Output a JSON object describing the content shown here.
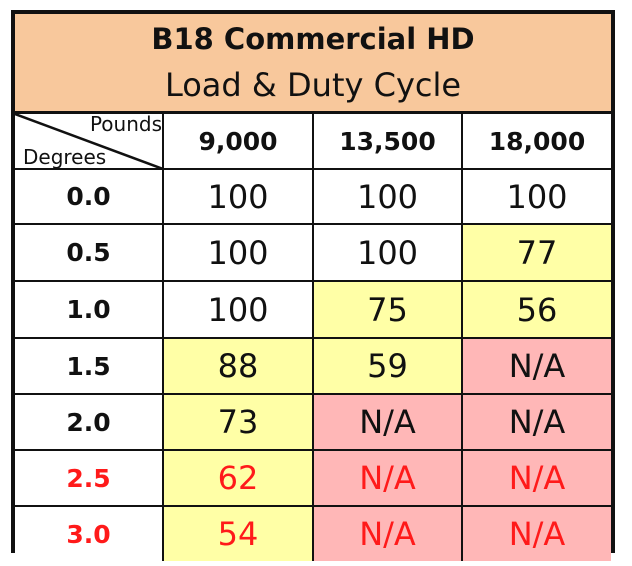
{
  "header": {
    "title": "B18 Commercial HD",
    "subtitle": "Load & Duty Cycle"
  },
  "corner": {
    "top_label": "Pounds",
    "bottom_label": "Degrees"
  },
  "columns": [
    "9,000",
    "13,500",
    "18,000"
  ],
  "rows": [
    {
      "degrees": "0.0",
      "values": [
        "100",
        "100",
        "100"
      ]
    },
    {
      "degrees": "0.5",
      "values": [
        "100",
        "100",
        "77"
      ]
    },
    {
      "degrees": "1.0",
      "values": [
        "100",
        "75",
        "56"
      ]
    },
    {
      "degrees": "1.5",
      "values": [
        "88",
        "59",
        "N/A"
      ]
    },
    {
      "degrees": "2.0",
      "values": [
        "73",
        "N/A",
        "N/A"
      ]
    },
    {
      "degrees": "2.5",
      "values": [
        "62",
        "N/A",
        "N/A"
      ]
    },
    {
      "degrees": "3.0",
      "values": [
        "54",
        "N/A",
        "N/A"
      ]
    }
  ],
  "colors": {
    "header_bg": "#f8c89c",
    "full_duty": "#ffffff",
    "reduced_duty": "#ffffa6",
    "not_available": "#ffb7b7",
    "warning_text": "#ff1a1a"
  }
}
